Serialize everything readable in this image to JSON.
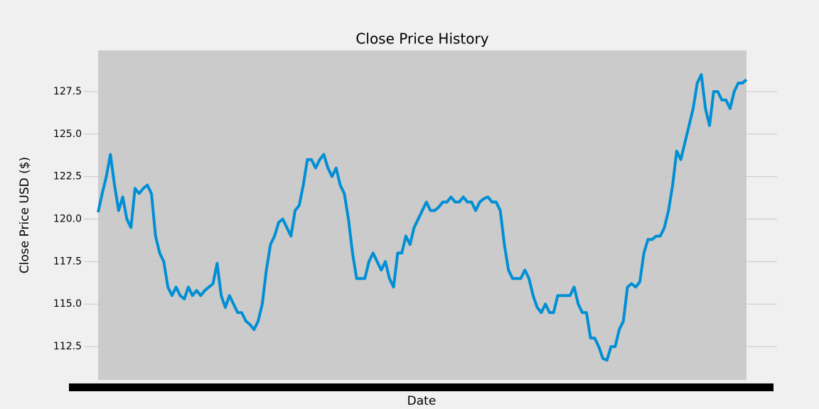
{
  "chart_data": {
    "type": "line",
    "title": "Close Price History",
    "x_label": "Date",
    "y_label": "Close Price USD ($)",
    "series": [
      {
        "color": "#008fd5",
        "values": [
          120.4,
          121.5,
          122.5,
          123.8,
          122,
          120.5,
          121.3,
          120,
          119.5,
          121.8,
          121.5,
          121.8,
          122,
          121.5,
          119,
          118,
          117.5,
          116,
          115.5,
          116,
          115.5,
          115.3,
          116,
          115.5,
          115.8,
          115.5,
          115.8,
          116,
          116.2,
          117.4,
          115.5,
          114.8,
          115.5,
          115,
          114.5,
          114.5,
          114,
          113.8,
          113.5,
          114,
          115,
          117,
          118.5,
          119,
          119.8,
          120,
          119.5,
          119,
          120.5,
          120.8,
          122,
          123.5,
          123.5,
          123,
          123.5,
          123.8,
          123,
          122.5,
          123,
          122,
          121.5,
          120,
          118,
          116.5,
          116.5,
          116.5,
          117.5,
          118,
          117.5,
          117,
          117.5,
          116.5,
          116,
          118,
          118,
          119,
          118.5,
          119.5,
          120,
          120.5,
          121,
          120.5,
          120.5,
          120.7,
          121,
          121,
          121.3,
          121,
          121,
          121.3,
          121,
          121,
          120.5,
          121,
          121.2,
          121.3,
          121,
          121,
          120.5,
          118.5,
          117,
          116.5,
          116.5,
          116.5,
          117,
          116.5,
          115.5,
          114.8,
          114.5,
          115,
          114.5,
          114.5,
          115.5,
          115.5,
          115.5,
          115.5,
          116,
          115,
          114.5,
          114.5,
          113,
          113,
          112.5,
          111.8,
          111.7,
          112.5,
          112.5,
          113.5,
          114,
          116,
          116.2,
          116,
          116.3,
          118,
          118.8,
          118.8,
          119,
          119,
          119.5,
          120.5,
          122,
          124,
          123.5,
          124.5,
          125.5,
          126.5,
          128,
          128.5,
          126.5,
          125.5,
          127.5,
          127.5,
          127,
          127,
          126.5,
          127.5,
          128,
          128,
          128.2
        ]
      }
    ],
    "ylim": [
      110.54,
      129.92
    ],
    "yticks": [
      112.5,
      {
        "value": 115,
        "label": "115.0"
      },
      117.5,
      {
        "value": 120,
        "label": "120.0"
      },
      122.5,
      {
        "value": 125,
        "label": "125.0"
      },
      127.5
    ],
    "grid": true
  }
}
